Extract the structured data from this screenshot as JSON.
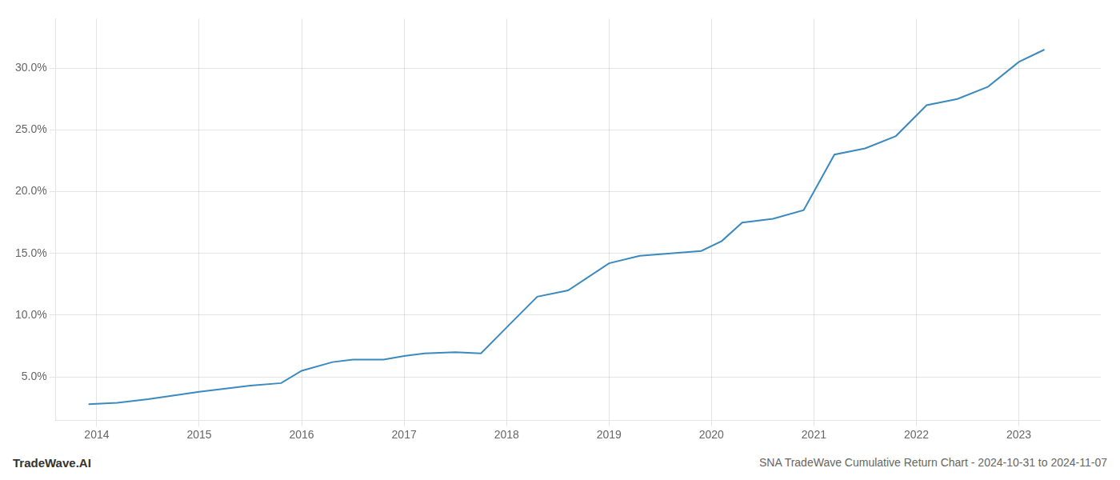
{
  "chart_data": {
    "type": "line",
    "title": "SNA TradeWave Cumulative Return Chart - 2024-10-31 to 2024-11-07",
    "annotations": [
      "TradeWave.AI"
    ],
    "x": [
      2013.92,
      2014.2,
      2014.5,
      2015.0,
      2015.5,
      2015.8,
      2016.0,
      2016.3,
      2016.5,
      2016.8,
      2017.0,
      2017.2,
      2017.5,
      2017.75,
      2018.0,
      2018.3,
      2018.6,
      2019.0,
      2019.3,
      2019.6,
      2019.9,
      2020.1,
      2020.3,
      2020.6,
      2020.9,
      2021.2,
      2021.5,
      2021.8,
      2022.1,
      2022.4,
      2022.7,
      2023.0,
      2023.25
    ],
    "values": [
      2.8,
      2.9,
      3.2,
      3.8,
      4.3,
      4.5,
      5.5,
      6.2,
      6.4,
      6.4,
      6.7,
      6.9,
      7.0,
      6.9,
      9.0,
      11.5,
      12.0,
      14.2,
      14.8,
      15.0,
      15.2,
      16.0,
      17.5,
      17.8,
      18.5,
      23.0,
      23.5,
      24.5,
      27.0,
      27.5,
      28.5,
      30.5,
      31.5
    ],
    "color": "#3a8abf",
    "xlim": [
      2013.6,
      2023.8
    ],
    "ylim": [
      1.5,
      34.0
    ],
    "xticks": [
      2014,
      2015,
      2016,
      2017,
      2018,
      2019,
      2020,
      2021,
      2022,
      2023
    ],
    "yticks": [
      {
        "value": 5.0,
        "label": "5.0%"
      },
      {
        "value": 10.0,
        "label": "10.0%"
      },
      {
        "value": 15.0,
        "label": "15.0%"
      },
      {
        "value": 20.0,
        "label": "20.0%"
      },
      {
        "value": 25.0,
        "label": "25.0%"
      },
      {
        "value": 30.0,
        "label": "30.0%"
      }
    ],
    "grid": true
  }
}
